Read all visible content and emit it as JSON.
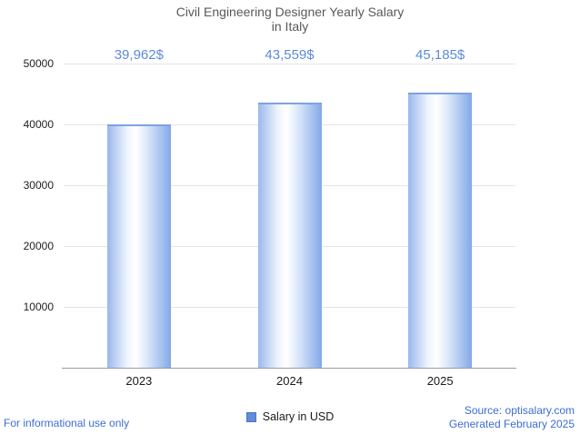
{
  "header": {
    "title_line1": "Civil Engineering Designer Yearly Salary",
    "title_line2": "in Italy"
  },
  "chart_data": {
    "type": "bar",
    "title": "Civil Engineering Designer Yearly Salary in Italy",
    "categories": [
      "2023",
      "2024",
      "2025"
    ],
    "values": [
      39962,
      43559,
      45185
    ],
    "value_labels": [
      "39,962$",
      "43,559$",
      "45,185$"
    ],
    "series_name": "Salary in USD",
    "xlabel": "",
    "ylabel": "",
    "ylim": [
      0,
      50000
    ],
    "yticks": [
      10000,
      20000,
      30000,
      40000,
      50000
    ],
    "grid": true,
    "legend_position": "bottom"
  },
  "colors": {
    "bar_edge": "#83a9e8",
    "bar_center": "#ffffff",
    "value_label_text": "#5b8bd8",
    "footer_text": "#3d6cd6",
    "title_text": "#58595b",
    "legend_swatch": "#638bd6"
  },
  "legend": {
    "label": "Salary in USD"
  },
  "footer": {
    "left": "For informational use only",
    "source": "Source: optisalary.com",
    "generated": "Generated February 2025"
  }
}
